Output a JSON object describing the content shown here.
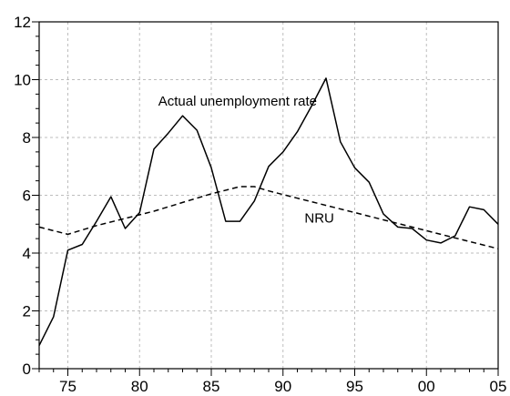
{
  "chart_data": {
    "type": "line",
    "xlim": [
      1973,
      2005
    ],
    "ylim": [
      0,
      12
    ],
    "x_ticks": [
      1975,
      1980,
      1985,
      1990,
      1995,
      2000,
      2005
    ],
    "x_tick_labels": [
      "75",
      "80",
      "85",
      "90",
      "95",
      "00",
      "05"
    ],
    "y_ticks": [
      0,
      2,
      4,
      6,
      8,
      10,
      12
    ],
    "y_tick_labels": [
      "0",
      "2",
      "4",
      "6",
      "8",
      "10",
      "12"
    ],
    "grid": true,
    "series": [
      {
        "name": "Actual unemployment rate",
        "style": "solid",
        "color": "#000000",
        "x": [
          1973,
          1974,
          1975,
          1976,
          1977,
          1978,
          1979,
          1980,
          1981,
          1982,
          1983,
          1984,
          1985,
          1986,
          1987,
          1988,
          1989,
          1990,
          1991,
          1992,
          1993,
          1994,
          1995,
          1996,
          1997,
          1998,
          1999,
          2000,
          2001,
          2002,
          2003,
          2004,
          2005
        ],
        "y": [
          0.8,
          1.8,
          4.1,
          4.3,
          5.1,
          5.95,
          4.85,
          5.4,
          7.6,
          8.15,
          8.75,
          8.25,
          6.95,
          5.1,
          5.1,
          5.8,
          7.0,
          7.5,
          8.2,
          9.1,
          10.05,
          7.85,
          6.95,
          6.45,
          5.35,
          4.9,
          4.85,
          4.45,
          4.35,
          4.6,
          5.6,
          5.5,
          5.0
        ]
      },
      {
        "name": "NRU",
        "style": "dashed",
        "color": "#000000",
        "x": [
          1973,
          1975,
          1977,
          1979,
          1981,
          1983,
          1985,
          1987,
          1988,
          1989,
          1991,
          1993,
          1995,
          1997,
          1999,
          2001,
          2003,
          2005
        ],
        "y": [
          4.9,
          4.65,
          4.95,
          5.2,
          5.45,
          5.75,
          6.05,
          6.3,
          6.3,
          6.15,
          5.9,
          5.65,
          5.4,
          5.15,
          4.9,
          4.65,
          4.4,
          4.15
        ]
      }
    ],
    "annotations": [
      {
        "text": "Actual unemployment rate",
        "x": 1981.3,
        "y": 9.1
      },
      {
        "text": "NRU",
        "x": 1991.5,
        "y": 5.05
      }
    ]
  }
}
